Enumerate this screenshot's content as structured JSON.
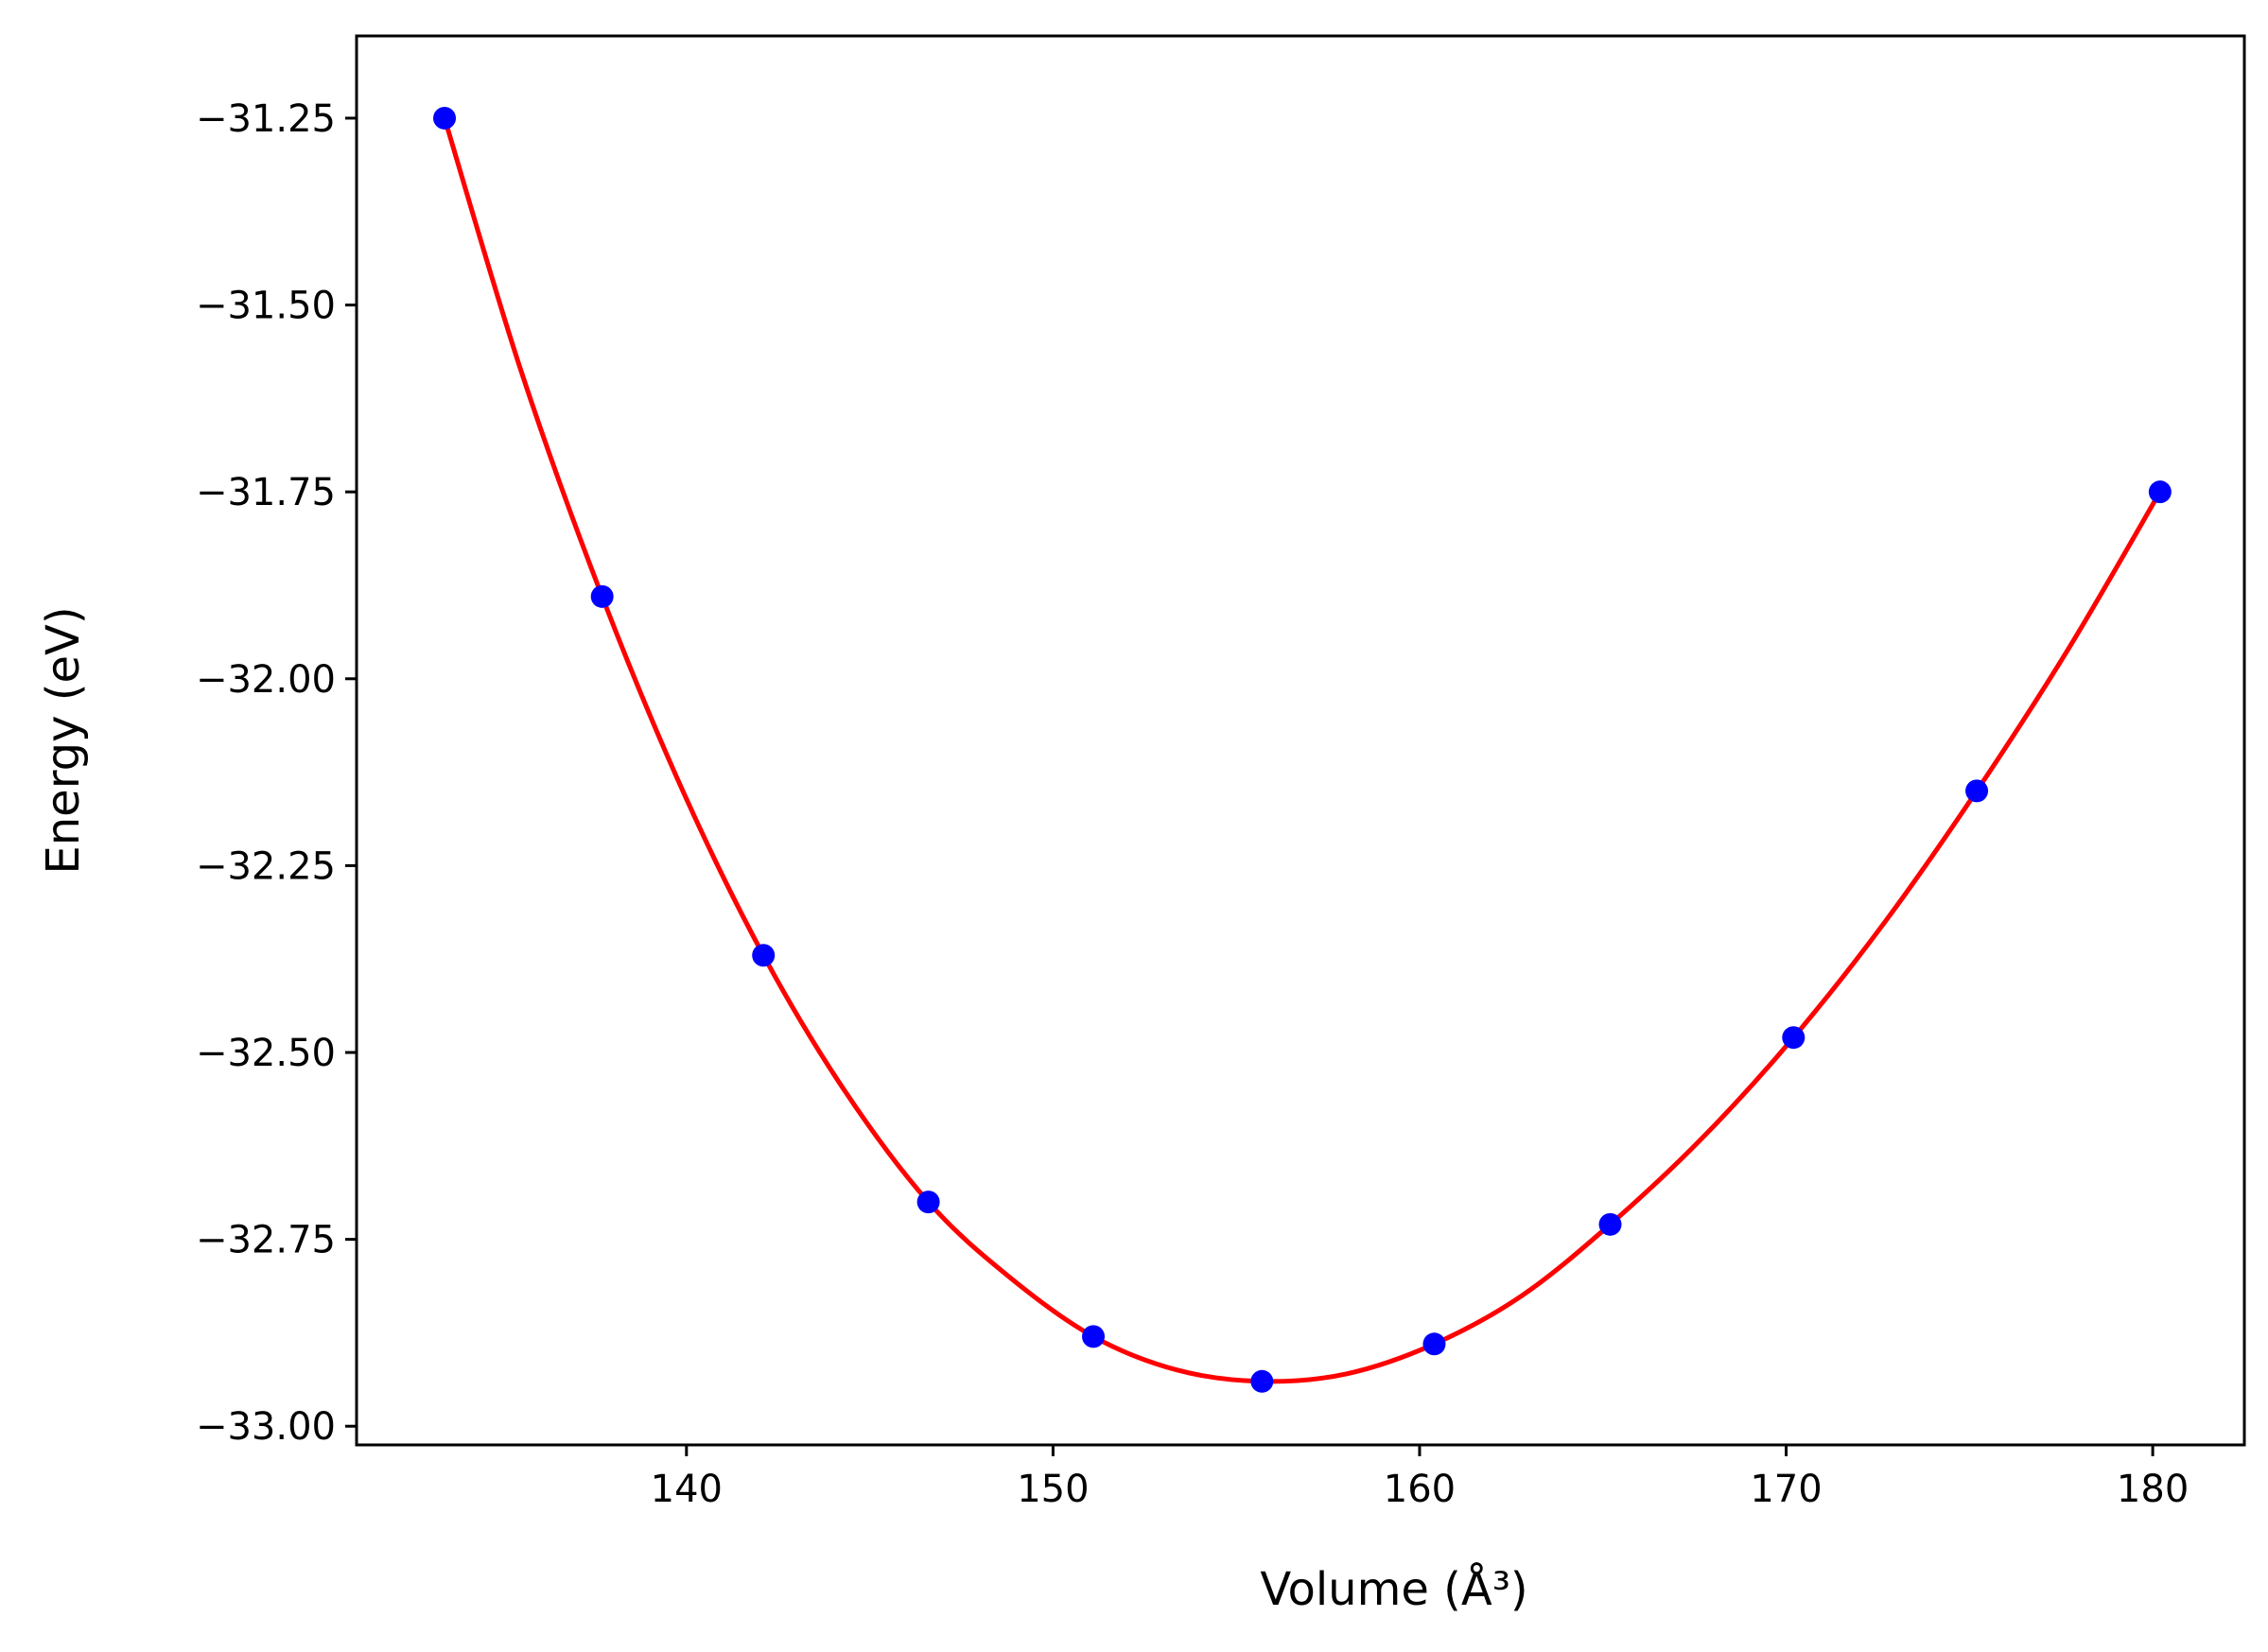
{
  "chart_data": {
    "type": "scatter",
    "xlabel": "Volume (Å³)",
    "ylabel": "Energy (eV)",
    "xlim": [
      131,
      182.5
    ],
    "ylim": [
      -33.025,
      -31.14
    ],
    "xticks": [
      140,
      150,
      160,
      170,
      180
    ],
    "xtick_labels": [
      "140",
      "150",
      "160",
      "170",
      "180"
    ],
    "yticks": [
      -31.25,
      -31.5,
      -31.75,
      -32.0,
      -32.25,
      -32.5,
      -32.75,
      -33.0
    ],
    "ytick_labels": [
      "−31.25",
      "−31.50",
      "−31.75",
      "−32.00",
      "−32.25",
      "−32.50",
      "−32.75",
      "−33.00"
    ],
    "grid": false,
    "series": [
      {
        "kind": "points",
        "color": "#0000ff",
        "x": [
          133.4,
          137.7,
          142.1,
          146.6,
          151.1,
          155.7,
          160.4,
          165.2,
          170.2,
          175.2,
          180.2
        ],
        "y": [
          -31.25,
          -31.89,
          -32.37,
          -32.7,
          -32.88,
          -32.94,
          -32.89,
          -32.73,
          -32.48,
          -32.15,
          -31.75
        ]
      },
      {
        "kind": "fit-line",
        "color": "#ff0000",
        "x": [
          133.4,
          135.5,
          137.7,
          139.9,
          142.1,
          144.3,
          146.6,
          148.8,
          151.1,
          153.4,
          155.7,
          158.0,
          160.4,
          162.8,
          165.2,
          167.7,
          170.2,
          172.7,
          175.2,
          177.7,
          180.2
        ],
        "y": [
          -31.25,
          -31.59,
          -31.89,
          -32.15,
          -32.37,
          -32.55,
          -32.7,
          -32.8,
          -32.88,
          -32.925,
          -32.94,
          -32.93,
          -32.89,
          -32.825,
          -32.73,
          -32.615,
          -32.48,
          -32.325,
          -32.15,
          -31.96,
          -31.75
        ]
      }
    ]
  }
}
